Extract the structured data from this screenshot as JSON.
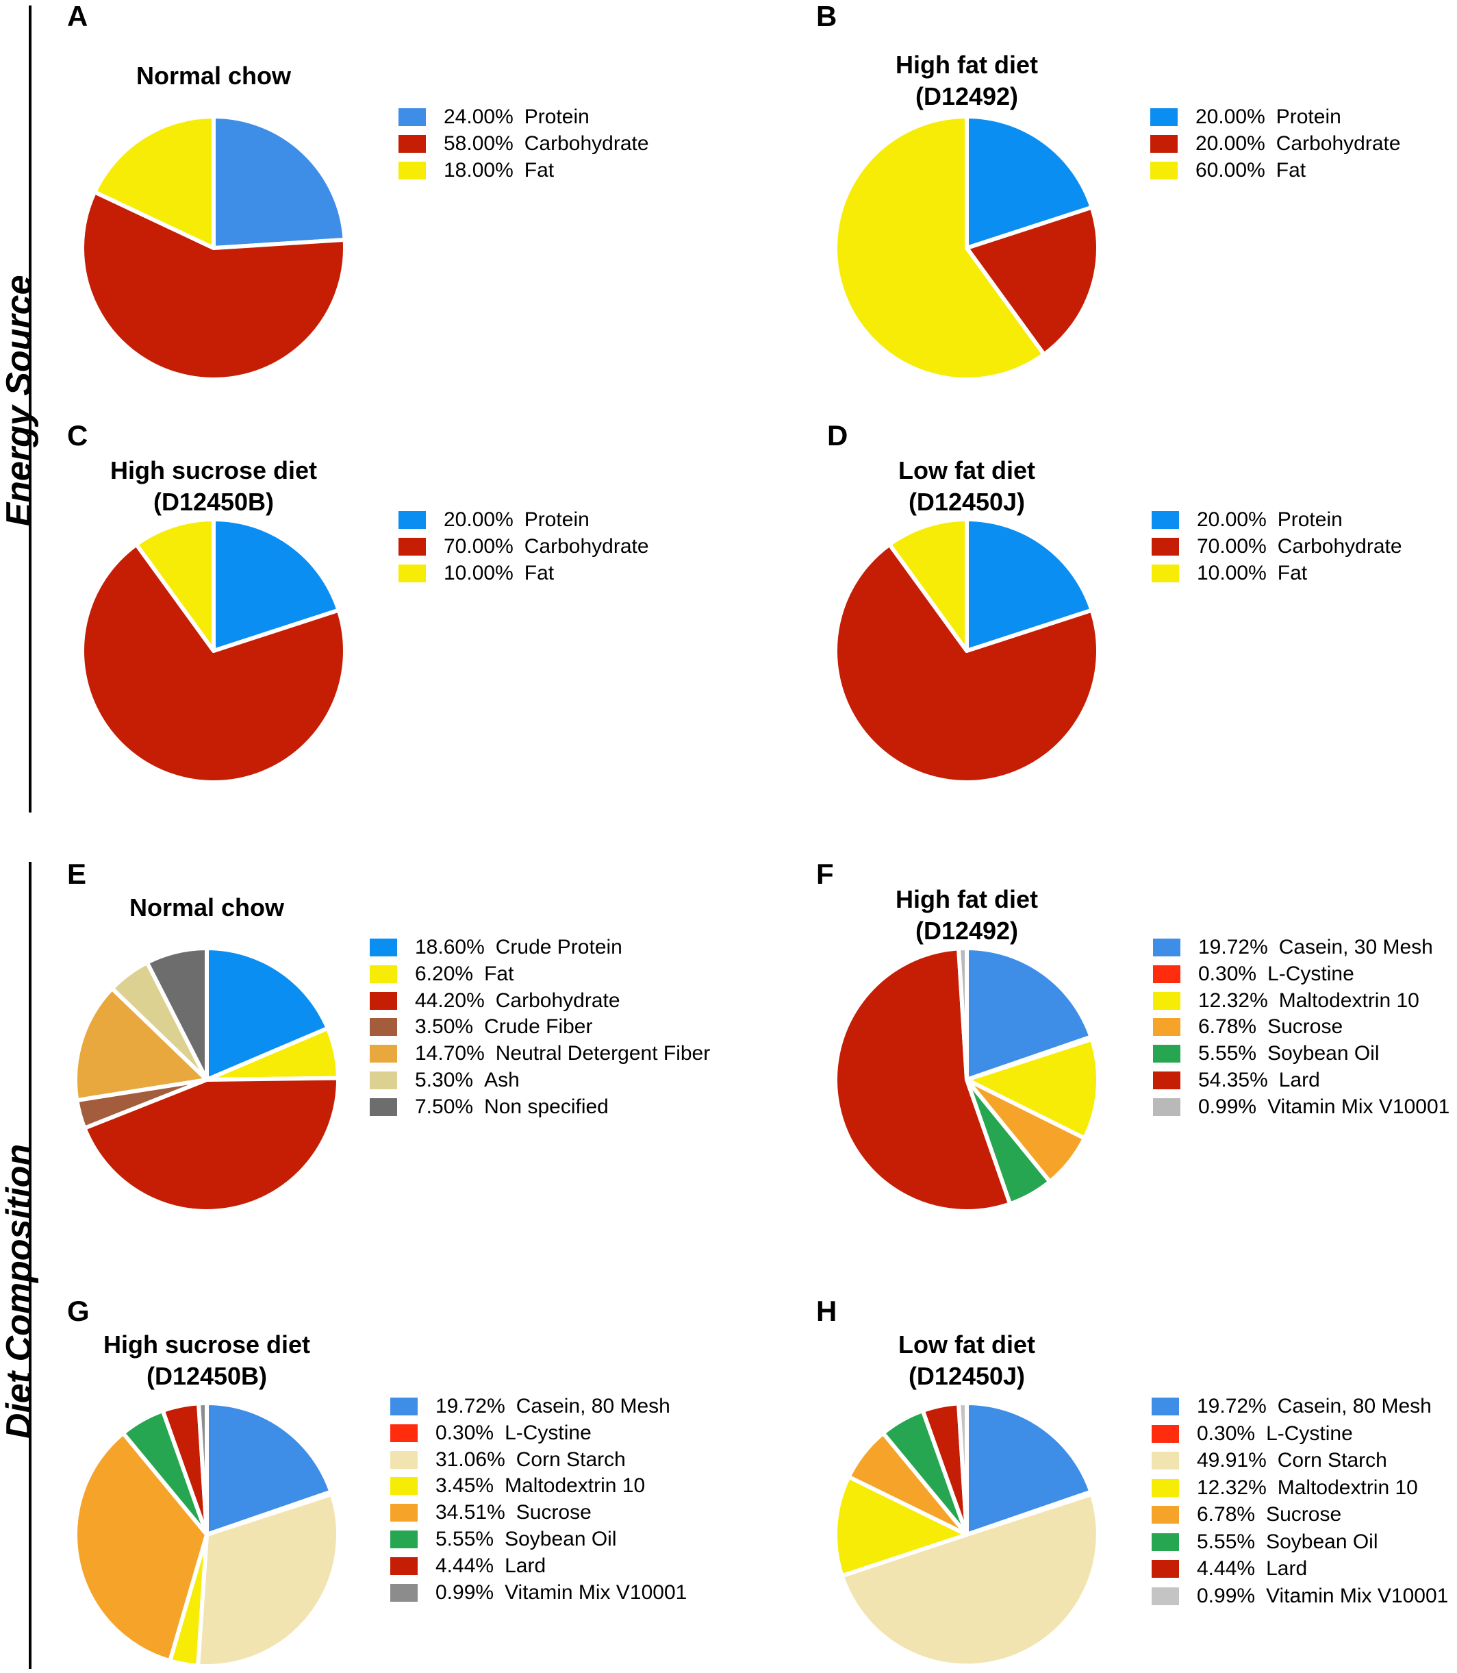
{
  "sections": [
    {
      "label": "Energy Source"
    },
    {
      "label": "Diet Composition"
    }
  ],
  "chart_data": [
    {
      "type": "pie",
      "panel": "A",
      "title_lines": [
        "Normal chow"
      ],
      "slices": [
        {
          "pct": "24.00%",
          "label": "Protein",
          "value": 24.0,
          "color": "#3e8ee8"
        },
        {
          "pct": "58.00%",
          "label": "Carbohydrate",
          "value": 58.0,
          "color": "#c61d05"
        },
        {
          "pct": "18.00%",
          "label": "Fat",
          "value": 18.0,
          "color": "#f7ec05"
        }
      ]
    },
    {
      "type": "pie",
      "panel": "B",
      "title_lines": [
        "High fat diet",
        "(D12492)"
      ],
      "slices": [
        {
          "pct": "20.00%",
          "label": "Protein",
          "value": 20.0,
          "color": "#0b8ef2"
        },
        {
          "pct": "20.00%",
          "label": "Carbohydrate",
          "value": 20.0,
          "color": "#c61d05"
        },
        {
          "pct": "60.00%",
          "label": "Fat",
          "value": 60.0,
          "color": "#f7ec05"
        }
      ]
    },
    {
      "type": "pie",
      "panel": "C",
      "title_lines": [
        "High sucrose diet",
        "(D12450B)"
      ],
      "slices": [
        {
          "pct": "20.00%",
          "label": "Protein",
          "value": 20.0,
          "color": "#0b8ef2"
        },
        {
          "pct": "70.00%",
          "label": "Carbohydrate",
          "value": 70.0,
          "color": "#c61d05"
        },
        {
          "pct": "10.00%",
          "label": "Fat",
          "value": 10.0,
          "color": "#f7ec05"
        }
      ]
    },
    {
      "type": "pie",
      "panel": "D",
      "title_lines": [
        "Low fat diet",
        "(D12450J)"
      ],
      "slices": [
        {
          "pct": "20.00%",
          "label": "Protein",
          "value": 20.0,
          "color": "#0b8ef2"
        },
        {
          "pct": "70.00%",
          "label": "Carbohydrate",
          "value": 70.0,
          "color": "#c61d05"
        },
        {
          "pct": "10.00%",
          "label": "Fat",
          "value": 10.0,
          "color": "#f7ec05"
        }
      ]
    },
    {
      "type": "pie",
      "panel": "E",
      "title_lines": [
        "Normal chow"
      ],
      "slices": [
        {
          "pct": "18.60%",
          "label": "Crude Protein",
          "value": 18.6,
          "color": "#0b8ef2"
        },
        {
          "pct": "6.20%",
          "label": "Fat",
          "value": 6.2,
          "color": "#f7ec05"
        },
        {
          "pct": "44.20%",
          "label": "Carbohydrate",
          "value": 44.2,
          "color": "#c61d05"
        },
        {
          "pct": "3.50%",
          "label": "Crude Fiber",
          "value": 3.5,
          "color": "#a35c3c"
        },
        {
          "pct": "14.70%",
          "label": "Neutral Detergent Fiber",
          "value": 14.7,
          "color": "#e8a83e"
        },
        {
          "pct": "5.30%",
          "label": "Ash",
          "value": 5.3,
          "color": "#dcd190"
        },
        {
          "pct": "7.50%",
          "label": "Non specified",
          "value": 7.5,
          "color": "#6d6d6d"
        }
      ]
    },
    {
      "type": "pie",
      "panel": "F",
      "title_lines": [
        "High fat diet",
        "(D12492)"
      ],
      "slices": [
        {
          "pct": "19.72%",
          "label": "Casein, 30 Mesh",
          "value": 19.72,
          "color": "#3e8ee8"
        },
        {
          "pct": "0.30%",
          "label": "L-Cystine",
          "value": 0.3,
          "color": "#ff2c0e"
        },
        {
          "pct": "12.32%",
          "label": "Maltodextrin 10",
          "value": 12.32,
          "color": "#f7ec05"
        },
        {
          "pct": "6.78%",
          "label": "Sucrose",
          "value": 6.78,
          "color": "#f6a32a"
        },
        {
          "pct": "5.55%",
          "label": "Soybean Oil",
          "value": 5.55,
          "color": "#26a650"
        },
        {
          "pct": "54.35%",
          "label": "Lard",
          "value": 54.35,
          "color": "#c61d05"
        },
        {
          "pct": "0.99%",
          "label": "Vitamin Mix V10001",
          "value": 0.99,
          "color": "#b9b9b9"
        }
      ]
    },
    {
      "type": "pie",
      "panel": "G",
      "title_lines": [
        "High sucrose diet",
        "(D12450B)"
      ],
      "slices": [
        {
          "pct": "19.72%",
          "label": "Casein, 80 Mesh",
          "value": 19.72,
          "color": "#3e8ee8"
        },
        {
          "pct": "0.30%",
          "label": "L-Cystine",
          "value": 0.3,
          "color": "#ff2c0e"
        },
        {
          "pct": "31.06%",
          "label": "Corn Starch",
          "value": 31.06,
          "color": "#f2e4b0"
        },
        {
          "pct": "3.45%",
          "label": "Maltodextrin 10",
          "value": 3.45,
          "color": "#f7ec05"
        },
        {
          "pct": "34.51%",
          "label": "Sucrose",
          "value": 34.51,
          "color": "#f6a32a"
        },
        {
          "pct": "5.55%",
          "label": "Soybean Oil",
          "value": 5.55,
          "color": "#26a650"
        },
        {
          "pct": "4.44%",
          "label": "Lard",
          "value": 4.44,
          "color": "#c61d05"
        },
        {
          "pct": "0.99%",
          "label": "Vitamin Mix V10001",
          "value": 0.99,
          "color": "#8c8c8c"
        }
      ]
    },
    {
      "type": "pie",
      "panel": "H",
      "title_lines": [
        "Low fat diet",
        "(D12450J)"
      ],
      "slices": [
        {
          "pct": "19.72%",
          "label": "Casein, 80 Mesh",
          "value": 19.72,
          "color": "#3e8ee8"
        },
        {
          "pct": "0.30%",
          "label": "L-Cystine",
          "value": 0.3,
          "color": "#ff2c0e"
        },
        {
          "pct": "49.91%",
          "label": "Corn Starch",
          "value": 49.91,
          "color": "#f2e4b0"
        },
        {
          "pct": "12.32%",
          "label": "Maltodextrin 10",
          "value": 12.32,
          "color": "#f7ec05"
        },
        {
          "pct": "6.78%",
          "label": "Sucrose",
          "value": 6.78,
          "color": "#f6a32a"
        },
        {
          "pct": "5.55%",
          "label": "Soybean Oil",
          "value": 5.55,
          "color": "#26a650"
        },
        {
          "pct": "4.44%",
          "label": "Lard",
          "value": 4.44,
          "color": "#c61d05"
        },
        {
          "pct": "0.99%",
          "label": "Vitamin Mix V10001",
          "value": 0.99,
          "color": "#c4c4c4"
        }
      ]
    }
  ]
}
